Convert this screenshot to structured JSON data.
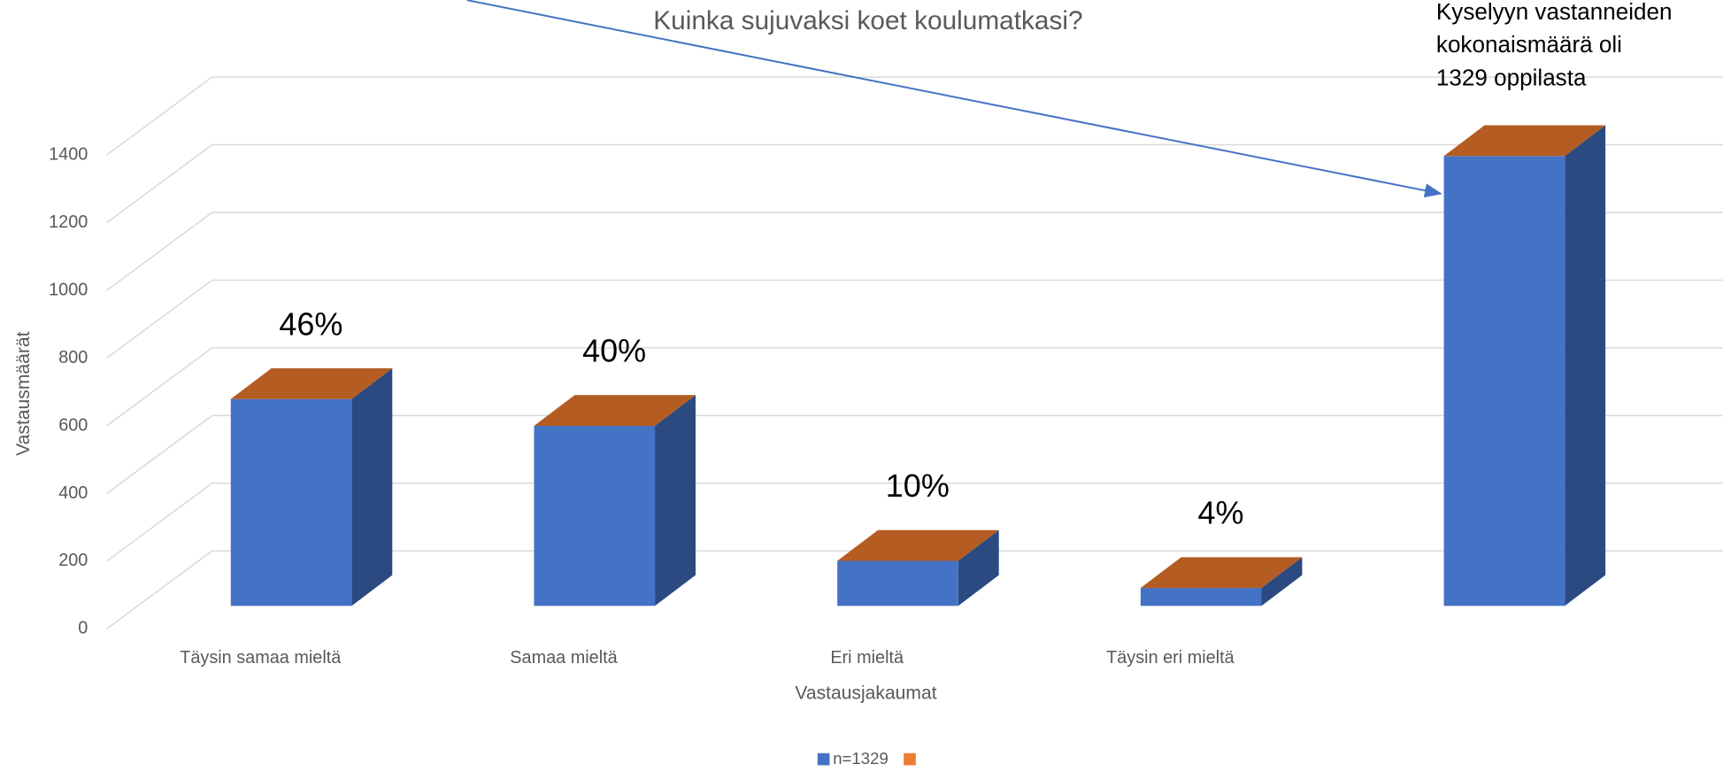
{
  "chart_data": {
    "type": "bar3d",
    "title": "Kuinka sujuvaksi koet koulumatkasi?",
    "x_label": "Vastausjakaumat",
    "y_label": "Vastausmäärät",
    "categories": [
      "Täysin samaa mieltä",
      "Samaa mieltä",
      "Eri mieltä",
      "Täysin eri mieltä",
      null
    ],
    "series": [
      {
        "name": "n=1329",
        "color": "#4472c4",
        "side_color": "#2b4a82",
        "top_color": "#b45c22",
        "values": [
          611,
          532,
          133,
          53,
          1329
        ],
        "value_labels": [
          "46%",
          "40%",
          "10%",
          "4%",
          null
        ]
      }
    ],
    "legend_extra_color": "#ed7d31",
    "ylim": [
      0,
      1400
    ],
    "yticks": [
      0,
      200,
      400,
      600,
      800,
      1000,
      1200,
      1400
    ],
    "grid": true,
    "annotation": [
      "Kyselyyn vastanneiden",
      "kokonaismäärä oli",
      "1329 oppilasta"
    ],
    "legend": "bottom"
  }
}
